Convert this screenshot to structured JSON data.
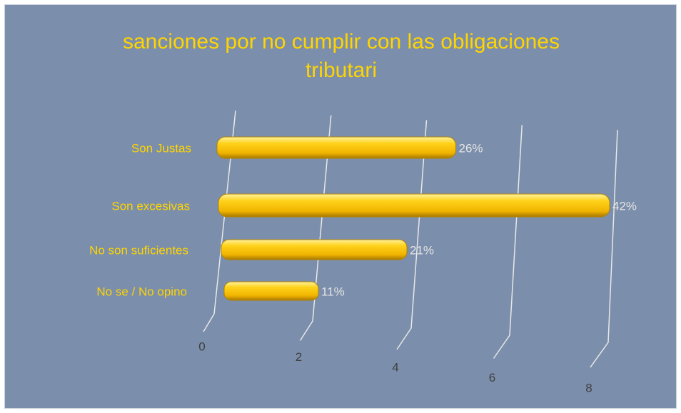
{
  "chart_data": {
    "type": "bar",
    "title": "sanciones por no cumplir con las obligaciones tributari",
    "categories": [
      "Son Justas",
      "Son excesivas",
      "No son suficientes",
      "No se / No opino"
    ],
    "values": [
      5,
      8,
      4,
      2
    ],
    "value_labels": [
      "26%",
      "42%",
      "21%",
      "11%"
    ],
    "color": "#ffc800",
    "xlim": [
      0,
      8
    ],
    "xticks": [
      0,
      2,
      4,
      6,
      8
    ],
    "grid": true
  }
}
